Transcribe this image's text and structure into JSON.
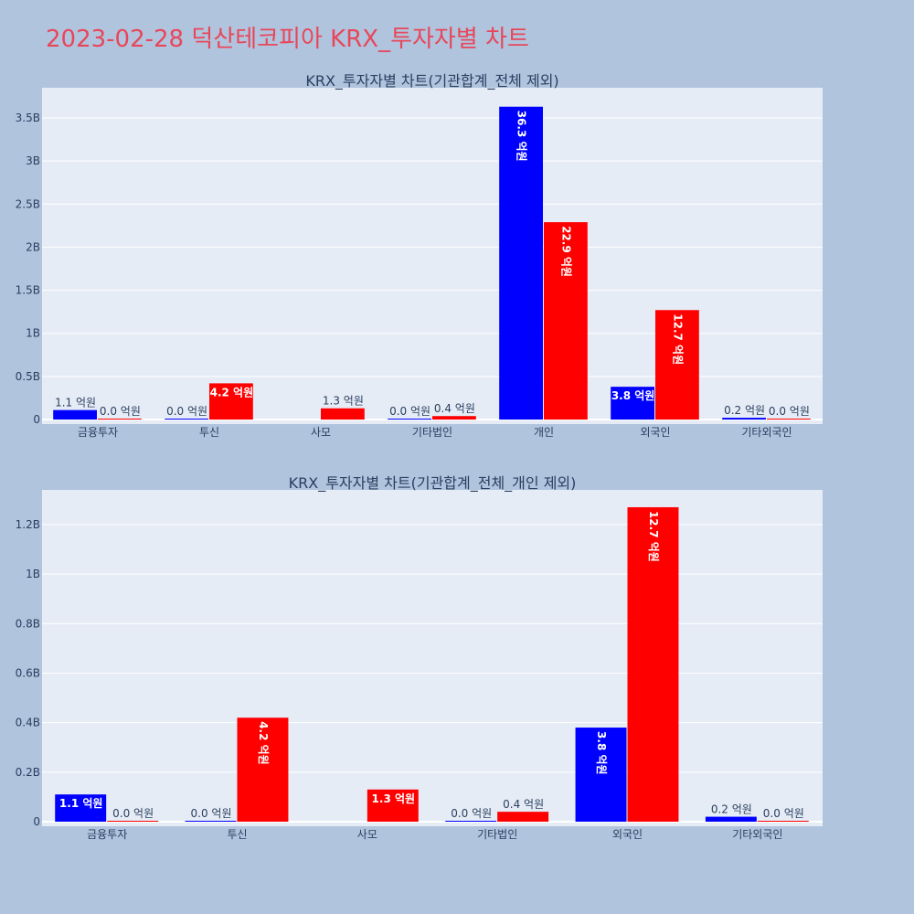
{
  "page_title": "2023-02-28 덕산테코피아 KRX_투자자별 차트",
  "colors": {
    "background": "#b0c4de",
    "plot_bg": "#e5ecf6",
    "title": "#e8475a",
    "series_a": "#0000ff",
    "series_b": "#ff0000"
  },
  "chart_data": [
    {
      "type": "bar",
      "title": "KRX_투자자별 차트(기관합계_전체 제외)",
      "categories": [
        "금융투자",
        "투신",
        "사모",
        "기타법인",
        "개인",
        "외국인",
        "기타외국인"
      ],
      "ylim": [
        0,
        3850000000
      ],
      "yticks": [
        0,
        500000000,
        1000000000,
        1500000000,
        2000000000,
        2500000000,
        3000000000,
        3500000000
      ],
      "ytick_labels": [
        "0",
        "0.5B",
        "1B",
        "1.5B",
        "2B",
        "2.5B",
        "3B",
        "3.5B"
      ],
      "grid": true,
      "series": [
        {
          "color": "#0000ff",
          "values": [
            110000000,
            0,
            null,
            0,
            3630000000,
            380000000,
            20000000
          ],
          "labels": [
            "1.1 억원",
            "0.0 억원",
            "",
            "0.0 억원",
            "36.3 억원",
            "3.8 억원",
            "0.2 억원"
          ]
        },
        {
          "color": "#ff0000",
          "values": [
            0,
            420000000,
            130000000,
            40000000,
            2290000000,
            1270000000,
            0
          ],
          "labels": [
            "0.0 억원",
            "4.2 억원",
            "1.3 억원",
            "0.4 억원",
            "22.9 억원",
            "12.7 억원",
            "0.0 억원"
          ]
        }
      ]
    },
    {
      "type": "bar",
      "title": "KRX_투자자별 차트(기관합계_전체_개인 제외)",
      "categories": [
        "금융투자",
        "투신",
        "사모",
        "기타법인",
        "외국인",
        "기타외국인"
      ],
      "ylim": [
        0,
        1340000000
      ],
      "yticks": [
        0,
        200000000,
        400000000,
        600000000,
        800000000,
        1000000000,
        1200000000
      ],
      "ytick_labels": [
        "0",
        "0.2B",
        "0.4B",
        "0.6B",
        "0.8B",
        "1B",
        "1.2B"
      ],
      "grid": true,
      "series": [
        {
          "color": "#0000ff",
          "values": [
            110000000,
            0,
            null,
            0,
            380000000,
            20000000
          ],
          "labels": [
            "1.1 억원",
            "0.0 억원",
            "",
            "0.0 억원",
            "3.8 억원",
            "0.2 억원"
          ]
        },
        {
          "color": "#ff0000",
          "values": [
            0,
            420000000,
            130000000,
            40000000,
            1270000000,
            0
          ],
          "labels": [
            "0.0 억원",
            "4.2 억원",
            "1.3 억원",
            "0.4 억원",
            "12.7 억원",
            "0.0 억원"
          ]
        }
      ]
    }
  ]
}
